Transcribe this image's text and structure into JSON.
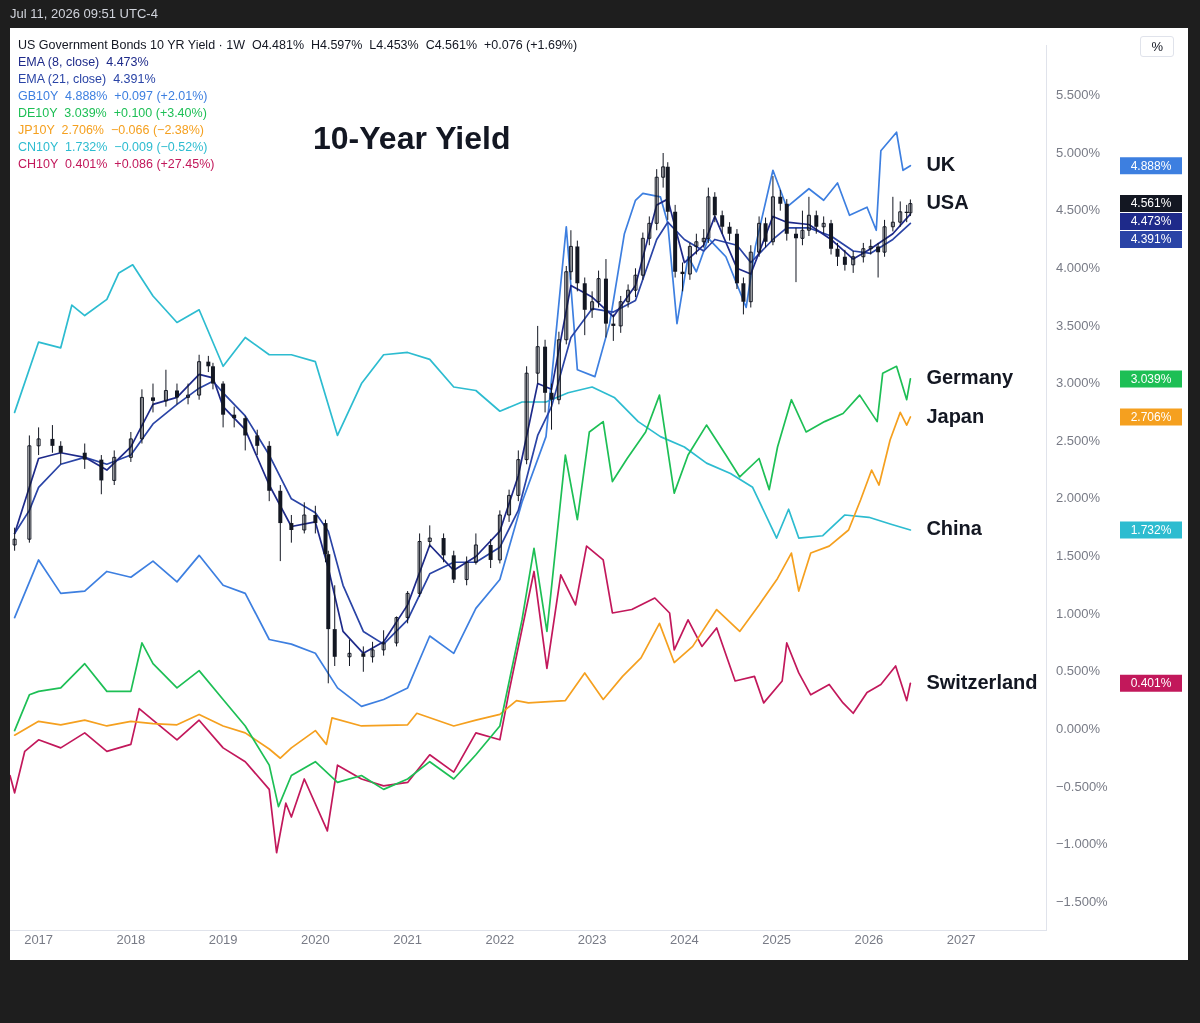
{
  "chart_data": {
    "type": "line",
    "title": "10-Year Yield",
    "ylabel": "%",
    "xlim": [
      2016.69,
      2027.92
    ],
    "xticks": [
      2017,
      2018,
      2019,
      2020,
      2021,
      2022,
      2023,
      2024,
      2025,
      2026,
      2027
    ],
    "ylim": [
      -1.74,
      5.93
    ],
    "yticks": [
      {
        "value": 5.5,
        "label": "5.500%"
      },
      {
        "value": 5,
        "label": "5.000%"
      },
      {
        "value": 4.5,
        "label": "4.500%"
      },
      {
        "value": 4,
        "label": "4.000%"
      },
      {
        "value": 3.5,
        "label": "3.500%"
      },
      {
        "value": 3,
        "label": "3.000%"
      },
      {
        "value": 2.5,
        "label": "2.500%"
      },
      {
        "value": 2,
        "label": "2.000%"
      },
      {
        "value": 1.5,
        "label": "1.500%"
      },
      {
        "value": 1,
        "label": "1.000%"
      },
      {
        "value": 0.5,
        "label": "0.500%"
      },
      {
        "value": 0,
        "label": "0.000%"
      },
      {
        "value": -0.5,
        "label": "−0.500%"
      },
      {
        "value": -1,
        "label": "−1.000%"
      },
      {
        "value": -1.5,
        "label": "−1.500%"
      }
    ],
    "grid": false,
    "legend": "right",
    "marker": "none",
    "line_style": "solid",
    "series": [
      {
        "type": "candlestick",
        "name": "USA",
        "color": "#131722",
        "x": [
          2016.74,
          2016.9,
          2017.0,
          2017.15,
          2017.24,
          2017.5,
          2017.68,
          2017.82,
          2018.0,
          2018.12,
          2018.24,
          2018.38,
          2018.5,
          2018.62,
          2018.74,
          2018.84,
          2018.89,
          2019.0,
          2019.12,
          2019.24,
          2019.37,
          2019.5,
          2019.62,
          2019.74,
          2019.88,
          2020.0,
          2020.11,
          2020.14,
          2020.21,
          2020.37,
          2020.52,
          2020.62,
          2020.74,
          2020.88,
          2021.0,
          2021.13,
          2021.24,
          2021.39,
          2021.5,
          2021.64,
          2021.74,
          2021.9,
          2022.0,
          2022.1,
          2022.2,
          2022.29,
          2022.41,
          2022.49,
          2022.56,
          2022.64,
          2022.72,
          2022.77,
          2022.84,
          2022.92,
          2023.0,
          2023.07,
          2023.15,
          2023.23,
          2023.31,
          2023.39,
          2023.47,
          2023.55,
          2023.62,
          2023.7,
          2023.77,
          2023.82,
          2023.9,
          2023.98,
          2024.06,
          2024.13,
          2024.21,
          2024.26,
          2024.33,
          2024.41,
          2024.49,
          2024.57,
          2024.64,
          2024.72,
          2024.81,
          2024.88,
          2024.96,
          2025.04,
          2025.11,
          2025.21,
          2025.28,
          2025.35,
          2025.43,
          2025.51,
          2025.59,
          2025.66,
          2025.74,
          2025.83,
          2025.94,
          2026.02,
          2026.1,
          2026.17,
          2026.26,
          2026.34,
          2026.41,
          2026.45
        ],
        "ohlc": [
          [
            1.6,
            1.75,
            1.55,
            1.65
          ],
          [
            1.65,
            2.55,
            1.62,
            2.46
          ],
          [
            2.46,
            2.62,
            2.38,
            2.52
          ],
          [
            2.52,
            2.64,
            2.4,
            2.46
          ],
          [
            2.46,
            2.5,
            2.3,
            2.4
          ],
          [
            2.4,
            2.48,
            2.26,
            2.34
          ],
          [
            2.34,
            2.38,
            2.04,
            2.16
          ],
          [
            2.16,
            2.42,
            2.12,
            2.36
          ],
          [
            2.36,
            2.58,
            2.32,
            2.52
          ],
          [
            2.52,
            2.95,
            2.48,
            2.88
          ],
          [
            2.88,
            3.0,
            2.75,
            2.85
          ],
          [
            2.85,
            3.12,
            2.8,
            2.94
          ],
          [
            2.94,
            3.0,
            2.82,
            2.88
          ],
          [
            2.88,
            3.0,
            2.82,
            2.9
          ],
          [
            2.9,
            3.25,
            2.86,
            3.19
          ],
          [
            3.19,
            3.24,
            3.1,
            3.15
          ],
          [
            3.15,
            3.18,
            2.95,
            3.0
          ],
          [
            3.0,
            3.02,
            2.62,
            2.73
          ],
          [
            2.73,
            2.8,
            2.62,
            2.7
          ],
          [
            2.7,
            2.72,
            2.42,
            2.55
          ],
          [
            2.55,
            2.6,
            2.38,
            2.46
          ],
          [
            2.46,
            2.5,
            1.98,
            2.07
          ],
          [
            2.07,
            2.12,
            1.46,
            1.79
          ],
          [
            1.79,
            1.86,
            1.62,
            1.73
          ],
          [
            1.73,
            1.97,
            1.7,
            1.86
          ],
          [
            1.86,
            1.94,
            1.7,
            1.79
          ],
          [
            1.79,
            1.82,
            1.45,
            1.52
          ],
          [
            1.52,
            1.55,
            0.4,
            0.87
          ],
          [
            0.87,
            1.25,
            0.55,
            0.63
          ],
          [
            0.63,
            0.78,
            0.55,
            0.66
          ],
          [
            0.66,
            0.72,
            0.5,
            0.63
          ],
          [
            0.63,
            0.76,
            0.58,
            0.69
          ],
          [
            0.69,
            0.86,
            0.64,
            0.75
          ],
          [
            0.75,
            0.98,
            0.72,
            0.97
          ],
          [
            0.97,
            1.2,
            0.92,
            1.18
          ],
          [
            1.18,
            1.7,
            1.15,
            1.63
          ],
          [
            1.63,
            1.77,
            1.58,
            1.66
          ],
          [
            1.66,
            1.7,
            1.45,
            1.51
          ],
          [
            1.51,
            1.55,
            1.27,
            1.3
          ],
          [
            1.3,
            1.5,
            1.25,
            1.45
          ],
          [
            1.45,
            1.7,
            1.43,
            1.6
          ],
          [
            1.6,
            1.65,
            1.4,
            1.47
          ],
          [
            1.47,
            1.9,
            1.44,
            1.86
          ],
          [
            1.86,
            2.08,
            1.8,
            2.03
          ],
          [
            2.03,
            2.42,
            1.98,
            2.34
          ],
          [
            2.34,
            3.15,
            2.3,
            3.09
          ],
          [
            3.09,
            3.5,
            3.0,
            3.32
          ],
          [
            3.32,
            3.38,
            2.75,
            2.92
          ],
          [
            2.92,
            3.0,
            2.6,
            2.86
          ],
          [
            2.86,
            3.45,
            2.82,
            3.38
          ],
          [
            3.38,
            4.02,
            3.34,
            3.97
          ],
          [
            3.97,
            4.33,
            3.9,
            4.19
          ],
          [
            4.19,
            4.24,
            3.8,
            3.87
          ],
          [
            3.87,
            3.92,
            3.42,
            3.64
          ],
          [
            3.64,
            3.8,
            3.57,
            3.71
          ],
          [
            3.71,
            3.98,
            3.66,
            3.91
          ],
          [
            3.91,
            4.08,
            3.4,
            3.52
          ],
          [
            3.52,
            3.6,
            3.37,
            3.5
          ],
          [
            3.5,
            3.76,
            3.44,
            3.71
          ],
          [
            3.71,
            3.86,
            3.66,
            3.81
          ],
          [
            3.81,
            4.0,
            3.75,
            3.94
          ],
          [
            3.94,
            4.31,
            3.9,
            4.26
          ],
          [
            4.26,
            4.45,
            4.2,
            4.39
          ],
          [
            4.39,
            4.86,
            4.33,
            4.79
          ],
          [
            4.79,
            5.0,
            4.7,
            4.88
          ],
          [
            4.88,
            4.92,
            4.42,
            4.49
          ],
          [
            4.49,
            4.55,
            3.92,
            3.97
          ],
          [
            3.97,
            4.05,
            3.8,
            3.95
          ],
          [
            3.95,
            4.22,
            3.9,
            4.19
          ],
          [
            4.19,
            4.3,
            4.12,
            4.23
          ],
          [
            4.23,
            4.34,
            4.18,
            4.26
          ],
          [
            4.26,
            4.7,
            4.22,
            4.62
          ],
          [
            4.62,
            4.66,
            4.4,
            4.46
          ],
          [
            4.46,
            4.5,
            4.3,
            4.36
          ],
          [
            4.36,
            4.4,
            4.24,
            4.3
          ],
          [
            4.3,
            4.34,
            3.82,
            3.87
          ],
          [
            3.87,
            3.92,
            3.6,
            3.71
          ],
          [
            3.71,
            4.2,
            3.66,
            4.14
          ],
          [
            4.14,
            4.45,
            4.1,
            4.39
          ],
          [
            4.39,
            4.44,
            4.18,
            4.23
          ],
          [
            4.23,
            4.8,
            4.2,
            4.62
          ],
          [
            4.62,
            4.68,
            4.5,
            4.56
          ],
          [
            4.56,
            4.6,
            4.24,
            4.3
          ],
          [
            4.3,
            4.35,
            3.88,
            4.26
          ],
          [
            4.26,
            4.5,
            4.2,
            4.33
          ],
          [
            4.33,
            4.62,
            4.28,
            4.46
          ],
          [
            4.46,
            4.5,
            4.3,
            4.36
          ],
          [
            4.36,
            4.45,
            4.3,
            4.39
          ],
          [
            4.39,
            4.42,
            4.12,
            4.17
          ],
          [
            4.17,
            4.22,
            4.02,
            4.1
          ],
          [
            4.1,
            4.16,
            3.98,
            4.03
          ],
          [
            4.03,
            4.15,
            3.96,
            4.1
          ],
          [
            4.1,
            4.22,
            4.05,
            4.17
          ],
          [
            4.17,
            4.25,
            4.12,
            4.19
          ],
          [
            4.19,
            4.22,
            3.92,
            4.14
          ],
          [
            4.14,
            4.42,
            4.1,
            4.36
          ],
          [
            4.36,
            4.62,
            4.32,
            4.4
          ],
          [
            4.4,
            4.58,
            4.36,
            4.49
          ],
          [
            4.49,
            4.55,
            4.4,
            4.48
          ],
          [
            4.481,
            4.597,
            4.453,
            4.561
          ]
        ]
      },
      {
        "color": "#1e2a8a",
        "x": [
          2016.74,
          2016.9,
          2017.0,
          2017.24,
          2017.5,
          2017.74,
          2018.0,
          2018.24,
          2018.5,
          2018.74,
          2018.89,
          2019.0,
          2019.24,
          2019.5,
          2019.74,
          2020.0,
          2020.14,
          2020.3,
          2020.52,
          2020.74,
          2021.0,
          2021.24,
          2021.5,
          2021.74,
          2022.0,
          2022.2,
          2022.41,
          2022.56,
          2022.77,
          2023.0,
          2023.23,
          2023.47,
          2023.7,
          2023.82,
          2024.0,
          2024.21,
          2024.33,
          2024.57,
          2024.72,
          2024.96,
          2025.11,
          2025.35,
          2025.59,
          2025.83,
          2026.02,
          2026.26,
          2026.45
        ],
        "values": [
          1.7,
          2.1,
          2.35,
          2.4,
          2.36,
          2.25,
          2.45,
          2.82,
          2.88,
          3.08,
          3.05,
          2.8,
          2.6,
          2.12,
          1.76,
          1.8,
          1.4,
          0.85,
          0.66,
          0.76,
          1.08,
          1.6,
          1.38,
          1.5,
          1.72,
          2.2,
          3.0,
          2.95,
          3.85,
          3.75,
          3.58,
          3.85,
          4.55,
          4.6,
          4.05,
          4.2,
          4.45,
          4.0,
          3.95,
          4.45,
          4.4,
          4.38,
          4.25,
          4.08,
          4.17,
          4.3,
          4.47
        ]
      },
      {
        "color": "#2a44a6",
        "x": [
          2016.74,
          2016.9,
          2017.0,
          2017.24,
          2017.5,
          2017.74,
          2018.0,
          2018.24,
          2018.5,
          2018.74,
          2018.89,
          2019.0,
          2019.24,
          2019.5,
          2019.74,
          2020.0,
          2020.14,
          2020.3,
          2020.52,
          2020.74,
          2021.0,
          2021.24,
          2021.5,
          2021.74,
          2022.0,
          2022.2,
          2022.41,
          2022.56,
          2022.77,
          2023.0,
          2023.23,
          2023.47,
          2023.7,
          2023.82,
          2024.0,
          2024.21,
          2024.33,
          2024.57,
          2024.72,
          2024.96,
          2025.11,
          2025.35,
          2025.59,
          2025.83,
          2026.02,
          2026.26,
          2026.45
        ],
        "values": [
          1.7,
          1.9,
          2.1,
          2.3,
          2.36,
          2.3,
          2.38,
          2.65,
          2.82,
          2.96,
          3.02,
          2.92,
          2.72,
          2.38,
          2.0,
          1.88,
          1.72,
          1.25,
          0.85,
          0.74,
          0.95,
          1.35,
          1.45,
          1.45,
          1.58,
          1.9,
          2.55,
          2.8,
          3.4,
          3.65,
          3.62,
          3.72,
          4.25,
          4.4,
          4.25,
          4.15,
          4.25,
          4.2,
          4.05,
          4.25,
          4.35,
          4.35,
          4.28,
          4.15,
          4.13,
          4.25,
          4.39
        ]
      },
      {
        "name": "UK",
        "color": "#3d7fe0",
        "x": [
          2016.74,
          2017.0,
          2017.24,
          2017.5,
          2017.74,
          2018.0,
          2018.24,
          2018.5,
          2018.74,
          2019.0,
          2019.24,
          2019.5,
          2019.74,
          2020.0,
          2020.24,
          2020.5,
          2020.74,
          2021.0,
          2021.24,
          2021.5,
          2021.74,
          2022.0,
          2022.24,
          2022.5,
          2022.72,
          2022.84,
          2023.03,
          2023.19,
          2023.35,
          2023.47,
          2023.55,
          2023.74,
          2023.82,
          2023.92,
          2024.04,
          2024.13,
          2024.26,
          2024.45,
          2024.67,
          2024.77,
          2024.96,
          2025.11,
          2025.35,
          2025.51,
          2025.66,
          2025.79,
          2025.98,
          2026.08,
          2026.13,
          2026.3,
          2026.37,
          2026.45
        ],
        "values": [
          0.97,
          1.47,
          1.18,
          1.2,
          1.37,
          1.32,
          1.46,
          1.28,
          1.51,
          1.25,
          1.18,
          0.78,
          0.74,
          0.66,
          0.36,
          0.2,
          0.26,
          0.36,
          0.81,
          0.66,
          1.05,
          1.3,
          1.97,
          2.54,
          4.36,
          3.12,
          3.06,
          3.52,
          4.3,
          4.59,
          4.65,
          4.62,
          4.39,
          3.52,
          4.1,
          3.97,
          4.26,
          4.1,
          3.66,
          4.19,
          4.85,
          4.53,
          4.69,
          4.59,
          4.74,
          4.46,
          4.53,
          4.33,
          5.02,
          5.18,
          4.85,
          4.89
        ]
      },
      {
        "name": "Germany",
        "color": "#1dbf55",
        "x": [
          2016.74,
          2016.9,
          2017.0,
          2017.24,
          2017.5,
          2017.74,
          2018.0,
          2018.12,
          2018.24,
          2018.5,
          2018.74,
          2019.0,
          2019.24,
          2019.5,
          2019.6,
          2019.74,
          2020.0,
          2020.24,
          2020.5,
          2020.74,
          2021.0,
          2021.24,
          2021.5,
          2021.74,
          2022.0,
          2022.24,
          2022.37,
          2022.51,
          2022.71,
          2022.84,
          2022.97,
          2023.12,
          2023.22,
          2023.38,
          2023.58,
          2023.73,
          2023.89,
          2024.04,
          2024.24,
          2024.45,
          2024.6,
          2024.81,
          2024.92,
          2025.01,
          2025.16,
          2025.32,
          2025.52,
          2025.72,
          2025.9,
          2026.09,
          2026.15,
          2026.3,
          2026.41,
          2026.45
        ],
        "values": [
          -0.01,
          0.3,
          0.33,
          0.36,
          0.57,
          0.33,
          0.33,
          0.75,
          0.57,
          0.36,
          0.51,
          0.26,
          0.03,
          -0.31,
          -0.67,
          -0.4,
          -0.28,
          -0.46,
          -0.4,
          -0.52,
          -0.43,
          -0.28,
          -0.43,
          -0.22,
          0.03,
          0.95,
          1.57,
          0.85,
          2.38,
          1.82,
          2.58,
          2.67,
          2.15,
          2.35,
          2.58,
          2.9,
          2.05,
          2.38,
          2.64,
          2.38,
          2.19,
          2.35,
          2.08,
          2.45,
          2.86,
          2.58,
          2.67,
          2.74,
          2.9,
          2.67,
          3.09,
          3.15,
          2.86,
          3.04
        ]
      },
      {
        "name": "Japan",
        "color": "#f5a01f",
        "x": [
          2016.74,
          2017.0,
          2017.24,
          2017.5,
          2017.74,
          2018.0,
          2018.24,
          2018.5,
          2018.74,
          2019.0,
          2019.24,
          2019.5,
          2019.62,
          2019.74,
          2020.0,
          2020.12,
          2020.18,
          2020.5,
          2021.0,
          2021.1,
          2021.5,
          2021.74,
          2022.0,
          2022.18,
          2022.31,
          2022.71,
          2022.92,
          2023.12,
          2023.33,
          2023.53,
          2023.73,
          2023.89,
          2024.09,
          2024.35,
          2024.6,
          2024.81,
          2025.01,
          2025.16,
          2025.24,
          2025.37,
          2025.57,
          2025.78,
          2025.91,
          2026.03,
          2026.11,
          2026.23,
          2026.34,
          2026.41,
          2026.45
        ],
        "values": [
          -0.05,
          0.07,
          0.04,
          0.08,
          0.03,
          0.07,
          0.05,
          0.04,
          0.13,
          0.03,
          -0.03,
          -0.17,
          -0.25,
          -0.16,
          -0.01,
          -0.13,
          0.1,
          0.03,
          0.04,
          0.14,
          0.03,
          0.08,
          0.13,
          0.25,
          0.23,
          0.25,
          0.49,
          0.26,
          0.46,
          0.62,
          0.92,
          0.58,
          0.72,
          1.04,
          0.85,
          1.08,
          1.31,
          1.53,
          1.2,
          1.53,
          1.59,
          1.73,
          1.99,
          2.25,
          2.12,
          2.51,
          2.75,
          2.64,
          2.71
        ]
      },
      {
        "name": "China",
        "color": "#2dbcd0",
        "x": [
          2016.74,
          2017.0,
          2017.24,
          2017.36,
          2017.5,
          2017.74,
          2017.87,
          2018.02,
          2018.24,
          2018.5,
          2018.74,
          2019.0,
          2019.24,
          2019.5,
          2019.74,
          2020.0,
          2020.24,
          2020.5,
          2020.74,
          2021.0,
          2021.24,
          2021.5,
          2021.74,
          2022.0,
          2022.24,
          2022.5,
          2022.74,
          2023.0,
          2023.24,
          2023.5,
          2023.74,
          2024.0,
          2024.24,
          2024.5,
          2024.74,
          2025.0,
          2025.13,
          2025.24,
          2025.5,
          2025.74,
          2026.0,
          2026.24,
          2026.45
        ],
        "values": [
          2.75,
          3.36,
          3.31,
          3.68,
          3.59,
          3.73,
          3.96,
          4.03,
          3.76,
          3.53,
          3.64,
          3.15,
          3.4,
          3.25,
          3.25,
          3.19,
          2.55,
          3.0,
          3.25,
          3.27,
          3.21,
          2.97,
          2.94,
          2.76,
          2.84,
          2.84,
          2.92,
          2.97,
          2.88,
          2.67,
          2.54,
          2.45,
          2.31,
          2.22,
          2.1,
          1.66,
          1.91,
          1.66,
          1.68,
          1.86,
          1.84,
          1.78,
          1.73
        ]
      },
      {
        "name": "Switzerland",
        "color": "#c2185b",
        "x": [
          2016.69,
          2016.74,
          2016.85,
          2017.0,
          2017.24,
          2017.5,
          2017.74,
          2018.0,
          2018.09,
          2018.24,
          2018.5,
          2018.74,
          2019.0,
          2019.24,
          2019.5,
          2019.58,
          2019.68,
          2019.74,
          2019.88,
          2020.13,
          2020.24,
          2020.5,
          2020.74,
          2021.0,
          2021.24,
          2021.5,
          2021.74,
          2022.0,
          2022.1,
          2022.37,
          2022.51,
          2022.66,
          2022.82,
          2022.94,
          2023.12,
          2023.22,
          2023.43,
          2023.68,
          2023.84,
          2023.89,
          2024.04,
          2024.19,
          2024.35,
          2024.55,
          2024.76,
          2024.86,
          2025.06,
          2025.11,
          2025.24,
          2025.37,
          2025.57,
          2025.72,
          2025.83,
          2025.98,
          2026.13,
          2026.29,
          2026.41,
          2026.45
        ],
        "values": [
          -0.4,
          -0.55,
          -0.19,
          -0.09,
          -0.16,
          -0.03,
          -0.19,
          -0.13,
          0.18,
          0.08,
          -0.09,
          0.08,
          -0.16,
          -0.28,
          -0.52,
          -1.07,
          -0.64,
          -0.76,
          -0.43,
          -0.88,
          -0.31,
          -0.43,
          -0.49,
          -0.46,
          -0.22,
          -0.37,
          -0.03,
          -0.09,
          0.33,
          1.37,
          0.53,
          1.34,
          1.08,
          1.59,
          1.47,
          1.01,
          1.04,
          1.14,
          1.01,
          0.69,
          0.95,
          0.72,
          0.88,
          0.42,
          0.46,
          0.23,
          0.42,
          0.75,
          0.49,
          0.3,
          0.39,
          0.23,
          0.14,
          0.32,
          0.39,
          0.55,
          0.25,
          0.4
        ]
      }
    ],
    "annotations": [
      "US Government Bonds 10 YR Yield · 1W  O4.481%  H4.597%  L4.453%  C4.561%  +0.076 (+1.69%)",
      "EMA (8, close)  4.473%",
      "EMA (21, close)  4.391%",
      "GB10Y  4.888%  +0.097 (+2.01%)",
      "DE10Y  3.039%  +0.100 (+3.40%)",
      "JP10Y  2.706%  −0.066 (−2.38%)",
      "CN10Y  1.732%  −0.009 (−0.52%)",
      "CH10Y  0.401%  +0.086 (+27.45%)",
      "Jul 11, 2026 09:51 UTC-4",
      "4.561%",
      "4.473%",
      "4.391%",
      "4.888%",
      "3.039%",
      "2.706%",
      "1.732%",
      "0.401%"
    ]
  }
}
